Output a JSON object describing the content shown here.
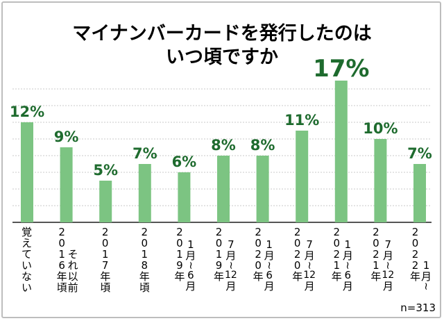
{
  "chart_data": {
    "type": "bar",
    "title": [
      "マイナンバーカードを発行したのは",
      "いつ頃ですか"
    ],
    "categories": [
      [
        [
          "覚",
          "え",
          "て",
          "い",
          "な",
          "い"
        ]
      ],
      [
        [
          "2",
          "0",
          "1",
          "6",
          "年",
          "頃"
        ],
        [
          "そ",
          "れ",
          "以",
          "前"
        ]
      ],
      [
        [
          "2",
          "0",
          "1",
          "7",
          "年",
          "頃"
        ]
      ],
      [
        [
          "2",
          "0",
          "1",
          "8",
          "年",
          "頃"
        ]
      ],
      [
        [
          "2",
          "0",
          "1",
          "9",
          "年"
        ],
        [
          "1",
          "月",
          "~",
          "6",
          "月"
        ]
      ],
      [
        [
          "2",
          "0",
          "1",
          "9",
          "年"
        ],
        [
          "7",
          "月",
          "~",
          "12",
          "月"
        ]
      ],
      [
        [
          "2",
          "0",
          "2",
          "0",
          "年"
        ],
        [
          "1",
          "月",
          "~",
          "6",
          "月"
        ]
      ],
      [
        [
          "2",
          "0",
          "2",
          "0",
          "年"
        ],
        [
          "7",
          "月",
          "~",
          "12",
          "月"
        ]
      ],
      [
        [
          "2",
          "0",
          "2",
          "1",
          "年"
        ],
        [
          "1",
          "月",
          "~",
          "6",
          "月"
        ]
      ],
      [
        [
          "2",
          "0",
          "2",
          "1",
          "年"
        ],
        [
          "7",
          "月",
          "~",
          "12",
          "月"
        ]
      ],
      [
        [
          "2",
          "0",
          "2",
          "2",
          "年"
        ],
        [
          "1",
          "月",
          "~"
        ]
      ]
    ],
    "values": [
      12,
      9,
      5,
      7,
      6,
      8,
      8,
      11,
      17,
      10,
      7
    ],
    "value_labels": [
      "12%",
      "9%",
      "5%",
      "7%",
      "6%",
      "8%",
      "8%",
      "11%",
      "17%",
      "10%",
      "7%"
    ],
    "ylim": [
      0,
      18
    ],
    "grid": true,
    "bar_color": "#7cc482",
    "label_color": "#1e6b2e",
    "note": "n=313"
  }
}
